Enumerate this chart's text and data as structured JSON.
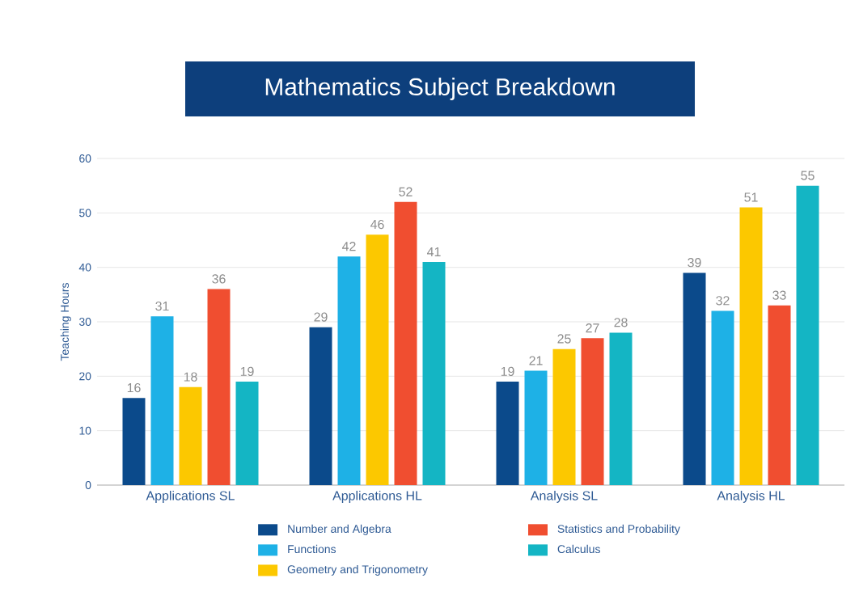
{
  "chart_data": {
    "type": "bar",
    "title": "Mathematics Subject Breakdown",
    "ylabel": "Teaching Hours",
    "categories": [
      "Applications SL",
      "Applications HL",
      "Analysis SL",
      "Analysis HL"
    ],
    "series": [
      {
        "name": "Number and Algebra",
        "color": "#0b4a8b",
        "values": [
          16,
          29,
          19,
          39
        ]
      },
      {
        "name": "Functions",
        "color": "#1eb1e6",
        "values": [
          31,
          42,
          21,
          32
        ]
      },
      {
        "name": "Geometry and Trigonometry",
        "color": "#fcc800",
        "values": [
          18,
          46,
          25,
          51
        ]
      },
      {
        "name": "Statistics and Probability",
        "color": "#f04e30",
        "values": [
          36,
          52,
          27,
          33
        ]
      },
      {
        "name": "Calculus",
        "color": "#14b5c4",
        "values": [
          19,
          41,
          28,
          55
        ]
      }
    ],
    "ylim": [
      0,
      60
    ],
    "yticks": [
      0,
      10,
      20,
      30,
      40,
      50,
      60
    ],
    "grid": "y",
    "legend": "bottom",
    "data_labels": true
  }
}
